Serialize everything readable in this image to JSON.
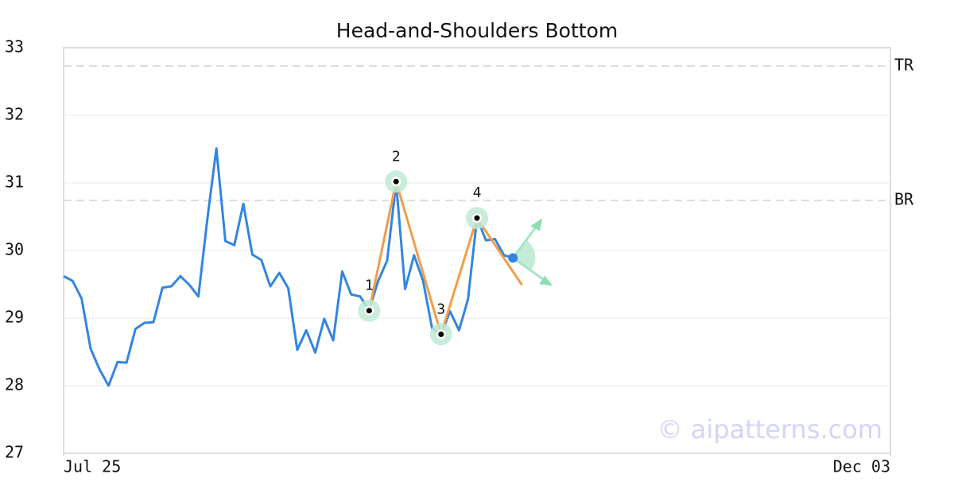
{
  "chart_data": {
    "type": "line",
    "title": "Head-and-Shoulders Bottom",
    "x": [
      0,
      1,
      2,
      3,
      4,
      5,
      6,
      7,
      8,
      9,
      10,
      11,
      12,
      13,
      14,
      15,
      16,
      17,
      18,
      19,
      20,
      21,
      22,
      23,
      24,
      25,
      26,
      27,
      28,
      29,
      30,
      31,
      32,
      33,
      34,
      35,
      36,
      37,
      38,
      39,
      40,
      41,
      42,
      43,
      44,
      45,
      46,
      47,
      48,
      49,
      50
    ],
    "series": [
      {
        "color": "#3385e0",
        "values": [
          29.62,
          29.55,
          29.29,
          28.55,
          28.24,
          28.0,
          28.35,
          28.34,
          28.84,
          28.93,
          28.94,
          29.45,
          29.47,
          29.62,
          29.49,
          29.32,
          30.47,
          31.51,
          30.14,
          30.08,
          30.69,
          29.94,
          29.86,
          29.47,
          29.67,
          29.44,
          28.53,
          28.82,
          28.49,
          28.99,
          28.67,
          29.69,
          29.35,
          29.32,
          29.12,
          29.55,
          29.85,
          31.0,
          29.43,
          29.93,
          29.55,
          28.85,
          28.76,
          29.1,
          28.82,
          29.28,
          30.48,
          30.15,
          30.17,
          29.93,
          29.89
        ]
      }
    ],
    "xlim": [
      0,
      92
    ],
    "xticks": [
      {
        "value": 0,
        "label": "Jul 25"
      },
      {
        "value": 92,
        "label": "Dec 03"
      }
    ],
    "ylim": [
      27,
      33
    ],
    "yticks": [
      27,
      28,
      29,
      30,
      31,
      32,
      33
    ],
    "grid": true,
    "levels": [
      {
        "label": "TR",
        "value": 32.73
      },
      {
        "label": "BR",
        "value": 30.74
      }
    ],
    "pattern": {
      "color": "#f39c4a",
      "points": [
        {
          "label": "1",
          "x": 34,
          "y": 29.11
        },
        {
          "label": "2",
          "x": 37,
          "y": 31.02
        },
        {
          "label": "3",
          "x": 42,
          "y": 28.76
        },
        {
          "label": "4",
          "x": 46,
          "y": 30.48
        }
      ],
      "projection": {
        "x": 51,
        "y": 29.49
      }
    },
    "watermark": "© aipatterns.com"
  }
}
